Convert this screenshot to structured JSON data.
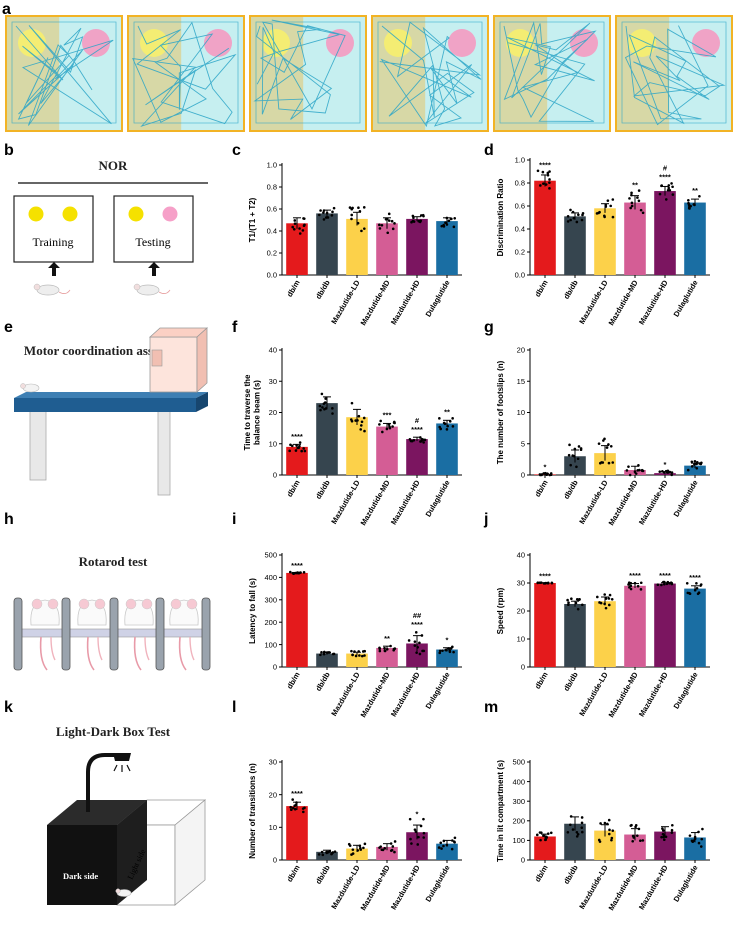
{
  "panel_labels": {
    "a": "a",
    "b": "b",
    "c": "c",
    "d": "d",
    "e": "e",
    "f": "f",
    "g": "g",
    "h": "h",
    "i": "i",
    "j": "j",
    "k": "k",
    "l": "l",
    "m": "m"
  },
  "colors": {
    "db_m": "#e41a1c",
    "db_db": "#36454f",
    "LD": "#fcd14a",
    "MD": "#d45d95",
    "HD": "#7b1560",
    "Dulaglutide": "#1a6ea3",
    "arena_border": "#f2b325",
    "arena_left": "#d7d8a6",
    "arena_right": "#c6eff0",
    "trace": "#2aa5c7",
    "yellow_object": "#f7f06e",
    "pink_object": "#f49ac1"
  },
  "nor": {
    "title": "NOR",
    "training": "Training",
    "testing": "Testing"
  },
  "motor": {
    "title": "Motor coordination assessments"
  },
  "rotarod": {
    "title": "Rotarod test"
  },
  "lightdark": {
    "title": "Light-Dark Box Test",
    "dark_side": "Dark side",
    "light_side": "Light side"
  },
  "chart_data": [
    {
      "id": "c",
      "type": "bar",
      "title": "",
      "xlabel": "",
      "ylabel": "T1/(T1 + T2)",
      "ylim": [
        0,
        1.0
      ],
      "yticks": [
        "0.0",
        "0.2",
        "0.4",
        "0.6",
        "0.8",
        "1.0"
      ],
      "categories": [
        "db/m",
        "db/db",
        "Mazdutide-LD",
        "Mazdutide-MD",
        "Mazdutide-HD",
        "Dulaglutide"
      ],
      "values": [
        0.47,
        0.56,
        0.51,
        0.47,
        0.51,
        0.49
      ],
      "errors": [
        0.05,
        0.03,
        0.06,
        0.05,
        0.02,
        0.03
      ],
      "significance": [
        "",
        "",
        "",
        "",
        "",
        ""
      ]
    },
    {
      "id": "d",
      "type": "bar",
      "title": "",
      "xlabel": "",
      "ylabel": "Discrimination Ratio",
      "ylim": [
        0,
        1.0
      ],
      "yticks": [
        "0.0",
        "0.2",
        "0.4",
        "0.6",
        "0.8",
        "1.0"
      ],
      "categories": [
        "db/m",
        "db/db",
        "Mazdutide-LD",
        "Mazdutide-MD",
        "Mazdutide-HD",
        "Dulaglutide"
      ],
      "values": [
        0.82,
        0.51,
        0.58,
        0.63,
        0.73,
        0.63
      ],
      "errors": [
        0.05,
        0.03,
        0.04,
        0.06,
        0.04,
        0.03
      ],
      "significance": [
        "****",
        "",
        "",
        "**",
        "#\n****",
        "**"
      ]
    },
    {
      "id": "f",
      "type": "bar",
      "title": "",
      "xlabel": "",
      "ylabel": "Time to traverse the balance beam (s)",
      "ylim": [
        0,
        40
      ],
      "yticks": [
        "0",
        "10",
        "20",
        "30",
        "40"
      ],
      "categories": [
        "db/m",
        "db/db",
        "Mazdutide-LD",
        "Mazdutide-MD",
        "Mazdutide-HD",
        "Dulaglutide"
      ],
      "values": [
        9.0,
        23.0,
        18.5,
        15.5,
        11.5,
        16.5
      ],
      "errors": [
        0.8,
        2.0,
        2.5,
        1.0,
        0.6,
        1.0
      ],
      "significance": [
        "****",
        "",
        "",
        "***",
        "#\n****",
        "**"
      ]
    },
    {
      "id": "g",
      "type": "bar",
      "title": "",
      "xlabel": "",
      "ylabel": "The number of footslips (n)",
      "ylim": [
        0,
        20
      ],
      "yticks": [
        "0",
        "5",
        "10",
        "15",
        "20"
      ],
      "categories": [
        "db/m",
        "db/db",
        "Mazdutide-LD",
        "Mazdutide-MD",
        "Mazdutide-HD",
        "Dulaglutide"
      ],
      "values": [
        0.1,
        3.0,
        3.5,
        0.8,
        0.3,
        1.5
      ],
      "errors": [
        0.1,
        1.0,
        1.2,
        0.6,
        0.2,
        0.4
      ],
      "significance": [
        "*",
        "",
        "",
        "",
        "*",
        ""
      ]
    },
    {
      "id": "i",
      "type": "bar",
      "title": "",
      "xlabel": "",
      "ylabel": "Latency to fall (s)",
      "ylim": [
        0,
        500
      ],
      "yticks": [
        "0",
        "100",
        "200",
        "300",
        "400",
        "500"
      ],
      "categories": [
        "db/m",
        "db/db",
        "Mazdutide-LD",
        "Mazdutide-MD",
        "Mazdutide-HD",
        "Dulaglutide"
      ],
      "values": [
        420,
        60,
        60,
        85,
        105,
        78
      ],
      "errors": [
        2,
        5,
        6,
        8,
        35,
        8
      ],
      "significance": [
        "****",
        "",
        "",
        "**",
        "##\n****",
        "*"
      ]
    },
    {
      "id": "j",
      "type": "bar",
      "title": "",
      "xlabel": "",
      "ylabel": "Speed (rpm)",
      "ylim": [
        0,
        40
      ],
      "yticks": [
        "0",
        "10",
        "20",
        "30",
        "40"
      ],
      "categories": [
        "db/m",
        "db/db",
        "Mazdutide-LD",
        "Mazdutide-MD",
        "Mazdutide-HD",
        "Dulaglutide"
      ],
      "values": [
        30.0,
        22.5,
        23.5,
        29.0,
        29.8,
        28.0
      ],
      "errors": [
        0.1,
        1.0,
        1.5,
        0.8,
        0.3,
        1.0
      ],
      "significance": [
        "****",
        "",
        "",
        "****",
        "****",
        "****"
      ]
    },
    {
      "id": "l",
      "type": "bar",
      "title": "",
      "xlabel": "",
      "ylabel": "Number of transitions (n)",
      "ylim": [
        0,
        30
      ],
      "yticks": [
        "0",
        "10",
        "20",
        "30"
      ],
      "categories": [
        "db/m",
        "db/db",
        "Mazdutide-LD",
        "Mazdutide-MD",
        "Mazdutide-HD",
        "Dulaglutide"
      ],
      "values": [
        16.5,
        2.5,
        3.5,
        4.0,
        8.5,
        5.0
      ],
      "errors": [
        1.2,
        0.5,
        1.0,
        1.0,
        2.2,
        1.0
      ],
      "significance": [
        "****",
        "",
        "",
        "",
        "*",
        ""
      ]
    },
    {
      "id": "m",
      "type": "bar",
      "title": "",
      "xlabel": "",
      "ylabel": "Time in lit compartment (s)",
      "ylim": [
        0,
        500
      ],
      "yticks": [
        "0",
        "100",
        "200",
        "300",
        "400",
        "500"
      ],
      "categories": [
        "db/m",
        "db/db",
        "Mazdutide-LD",
        "Mazdutide-MD",
        "Mazdutide-HD",
        "Dulaglutide"
      ],
      "values": [
        120,
        185,
        150,
        130,
        145,
        115
      ],
      "errors": [
        12,
        35,
        30,
        30,
        25,
        25
      ],
      "significance": [
        "",
        "",
        "",
        "",
        "",
        ""
      ]
    }
  ]
}
